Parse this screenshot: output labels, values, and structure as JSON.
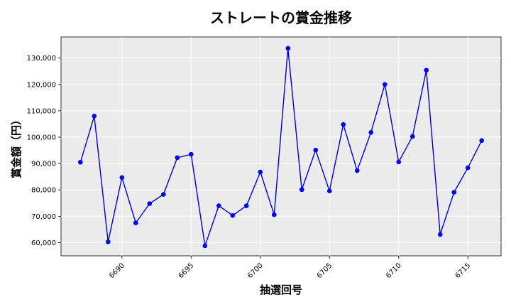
{
  "chart_data": {
    "type": "line",
    "title": "ストレートの賞金推移",
    "xlabel": "抽選回号",
    "ylabel": "賞金額（円）",
    "xlim": [
      6685.6,
      6717.4
    ],
    "ylim": [
      55000,
      138000
    ],
    "xticks": [
      6690,
      6695,
      6700,
      6705,
      6710,
      6715
    ],
    "yticks": [
      60000,
      70000,
      80000,
      90000,
      100000,
      110000,
      120000,
      130000
    ],
    "ytick_labels": [
      "60,000",
      "70,000",
      "80,000",
      "90,000",
      "100,000",
      "110,000",
      "120,000",
      "130,000"
    ],
    "grid": true,
    "line_color": "#0000cc",
    "marker_color": "#0000ff",
    "plot_background": "#ebebeb",
    "x": [
      6687,
      6688,
      6689,
      6690,
      6691,
      6692,
      6693,
      6694,
      6695,
      6696,
      6697,
      6698,
      6699,
      6700,
      6701,
      6702,
      6703,
      6704,
      6705,
      6706,
      6707,
      6708,
      6709,
      6710,
      6711,
      6712,
      6713,
      6714,
      6715,
      6716
    ],
    "y": [
      90500,
      108000,
      60300,
      84700,
      67500,
      74800,
      78300,
      92200,
      93500,
      58800,
      74000,
      70300,
      74000,
      86800,
      70600,
      133700,
      80100,
      95100,
      79600,
      104800,
      87300,
      101800,
      120000,
      90600,
      100300,
      125400,
      63100,
      79100,
      88400,
      98700
    ]
  }
}
